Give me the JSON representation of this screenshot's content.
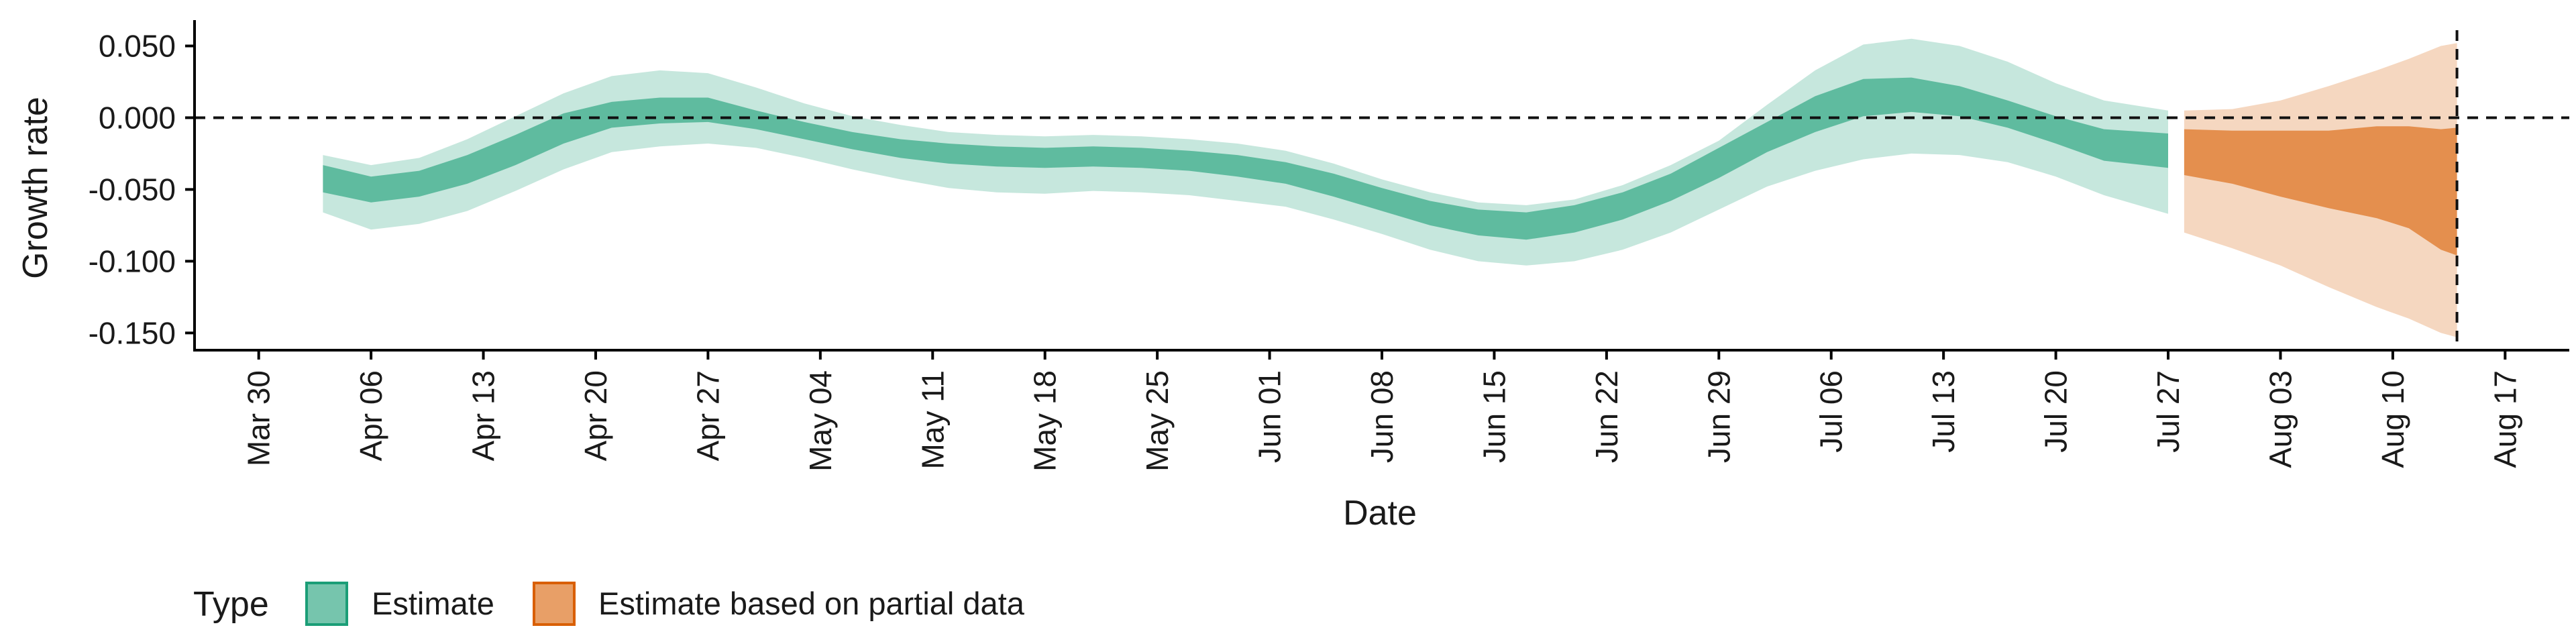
{
  "chart_data": {
    "type": "area",
    "title": "",
    "xlabel": "Date",
    "ylabel": "Growth rate",
    "ylim": [
      -0.162,
      0.068
    ],
    "xlim": [
      "2020-03-26",
      "2020-08-21"
    ],
    "x_ticks": [
      "Mar 30",
      "Apr 06",
      "Apr 13",
      "Apr 20",
      "Apr 27",
      "May 04",
      "May 11",
      "May 18",
      "May 25",
      "Jun 01",
      "Jun 08",
      "Jun 15",
      "Jun 22",
      "Jun 29",
      "Jul 06",
      "Jul 13",
      "Jul 20",
      "Jul 27",
      "Aug 03",
      "Aug 10",
      "Aug 17"
    ],
    "x_tick_dates": [
      "2020-03-30",
      "2020-04-06",
      "2020-04-13",
      "2020-04-20",
      "2020-04-27",
      "2020-05-04",
      "2020-05-11",
      "2020-05-18",
      "2020-05-25",
      "2020-06-01",
      "2020-06-08",
      "2020-06-15",
      "2020-06-22",
      "2020-06-29",
      "2020-07-06",
      "2020-07-13",
      "2020-07-20",
      "2020-07-27",
      "2020-08-03",
      "2020-08-10",
      "2020-08-17"
    ],
    "y_ticks": [
      0.05,
      0,
      -0.05,
      -0.1,
      -0.15
    ],
    "y_tick_labels": [
      "0.050",
      "0.000",
      "-0.050",
      "-0.100",
      "-0.150"
    ],
    "reference_lines": {
      "horizontal_y": 0,
      "vertical_date": "2020-08-14"
    },
    "grid": false,
    "legend": {
      "title": "Type",
      "position": "bottom-left",
      "entries": [
        {
          "label": "Estimate",
          "color": "#1b9e77"
        },
        {
          "label": "Estimate based on partial data",
          "color": "#d95f02"
        }
      ]
    },
    "series": [
      {
        "name": "Estimate",
        "color": "#1b9e77",
        "dates": [
          "2020-04-03",
          "2020-04-06",
          "2020-04-09",
          "2020-04-12",
          "2020-04-15",
          "2020-04-18",
          "2020-04-21",
          "2020-04-24",
          "2020-04-27",
          "2020-04-30",
          "2020-05-03",
          "2020-05-06",
          "2020-05-09",
          "2020-05-12",
          "2020-05-15",
          "2020-05-18",
          "2020-05-21",
          "2020-05-24",
          "2020-05-27",
          "2020-05-30",
          "2020-06-02",
          "2020-06-05",
          "2020-06-08",
          "2020-06-11",
          "2020-06-14",
          "2020-06-17",
          "2020-06-20",
          "2020-06-23",
          "2020-06-26",
          "2020-06-29",
          "2020-07-02",
          "2020-07-05",
          "2020-07-08",
          "2020-07-11",
          "2020-07-14",
          "2020-07-17",
          "2020-07-20",
          "2020-07-23",
          "2020-07-27"
        ],
        "lower90": [
          -0.066,
          -0.078,
          -0.074,
          -0.065,
          -0.051,
          -0.036,
          -0.024,
          -0.02,
          -0.018,
          -0.021,
          -0.028,
          -0.036,
          -0.043,
          -0.049,
          -0.052,
          -0.053,
          -0.051,
          -0.052,
          -0.054,
          -0.058,
          -0.062,
          -0.071,
          -0.081,
          -0.092,
          -0.1,
          -0.103,
          -0.1,
          -0.092,
          -0.08,
          -0.064,
          -0.048,
          -0.037,
          -0.029,
          -0.025,
          -0.026,
          -0.031,
          -0.041,
          -0.054,
          -0.067
        ],
        "upper90": [
          -0.026,
          -0.033,
          -0.028,
          -0.015,
          0.001,
          0.017,
          0.029,
          0.033,
          0.031,
          0.021,
          0.01,
          0.001,
          -0.005,
          -0.01,
          -0.012,
          -0.013,
          -0.012,
          -0.013,
          -0.015,
          -0.018,
          -0.023,
          -0.032,
          -0.043,
          -0.052,
          -0.059,
          -0.061,
          -0.057,
          -0.047,
          -0.033,
          -0.016,
          0.009,
          0.033,
          0.051,
          0.055,
          0.05,
          0.039,
          0.024,
          0.012,
          0.005
        ],
        "lower50": [
          -0.052,
          -0.059,
          -0.055,
          -0.046,
          -0.033,
          -0.018,
          -0.007,
          -0.004,
          -0.003,
          -0.008,
          -0.015,
          -0.022,
          -0.028,
          -0.032,
          -0.034,
          -0.035,
          -0.034,
          -0.035,
          -0.037,
          -0.041,
          -0.046,
          -0.055,
          -0.065,
          -0.075,
          -0.082,
          -0.085,
          -0.08,
          -0.071,
          -0.058,
          -0.042,
          -0.024,
          -0.01,
          0.001,
          0.004,
          0.001,
          -0.007,
          -0.018,
          -0.03,
          -0.035
        ],
        "upper50": [
          -0.033,
          -0.041,
          -0.037,
          -0.026,
          -0.012,
          0.003,
          0.011,
          0.014,
          0.014,
          0.005,
          -0.003,
          -0.01,
          -0.015,
          -0.018,
          -0.02,
          -0.021,
          -0.02,
          -0.021,
          -0.023,
          -0.026,
          -0.031,
          -0.039,
          -0.049,
          -0.058,
          -0.064,
          -0.066,
          -0.061,
          -0.052,
          -0.039,
          -0.021,
          -0.003,
          0.015,
          0.027,
          0.028,
          0.022,
          0.012,
          0.001,
          -0.008,
          -0.011
        ]
      },
      {
        "name": "Estimate based on partial data",
        "color": "#d95f02",
        "dates": [
          "2020-07-28",
          "2020-07-31",
          "2020-08-03",
          "2020-08-06",
          "2020-08-09",
          "2020-08-11",
          "2020-08-13",
          "2020-08-14"
        ],
        "lower90": [
          -0.08,
          -0.091,
          -0.103,
          -0.118,
          -0.132,
          -0.14,
          -0.15,
          -0.153
        ],
        "upper90": [
          0.005,
          0.006,
          0.012,
          0.022,
          0.033,
          0.041,
          0.05,
          0.052
        ],
        "lower50": [
          -0.04,
          -0.046,
          -0.055,
          -0.063,
          -0.07,
          -0.077,
          -0.092,
          -0.096
        ],
        "upper50": [
          -0.008,
          -0.009,
          -0.009,
          -0.009,
          -0.006,
          -0.006,
          -0.008,
          -0.007
        ]
      }
    ]
  }
}
